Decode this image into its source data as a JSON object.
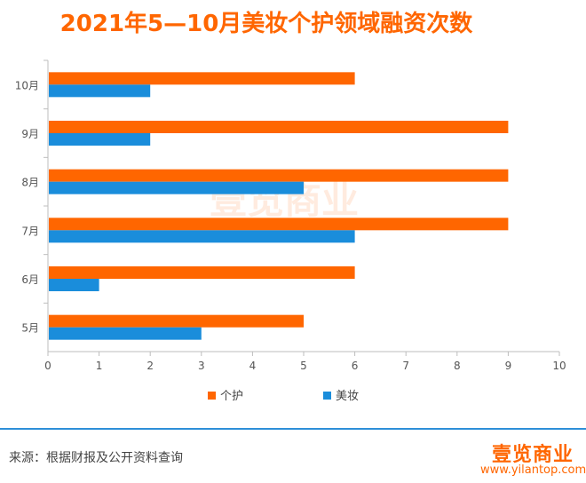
{
  "title": "2021年5—10月美妆个护领域融资次数",
  "source": "来源：根据财报及公开资料查询",
  "brand": {
    "name": "壹览商业",
    "url": "www.yilantop.com"
  },
  "chart_data": {
    "type": "bar",
    "orientation": "horizontal",
    "title": "2021年5—10月美妆个护领域融资次数",
    "categories": [
      "5月",
      "6月",
      "7月",
      "8月",
      "9月",
      "10月"
    ],
    "series": [
      {
        "name": "个护",
        "color": "#ff6600",
        "values": [
          5,
          6,
          9,
          9,
          9,
          6
        ]
      },
      {
        "name": "美妆",
        "color": "#1a8ddb",
        "values": [
          3,
          1,
          6,
          5,
          2,
          2
        ]
      }
    ],
    "xlim": [
      0,
      10
    ],
    "xticks": [
      "0",
      "1",
      "2",
      "3",
      "4",
      "5",
      "6",
      "7",
      "8",
      "9",
      "10"
    ],
    "legend_position": "bottom",
    "grid": false
  }
}
